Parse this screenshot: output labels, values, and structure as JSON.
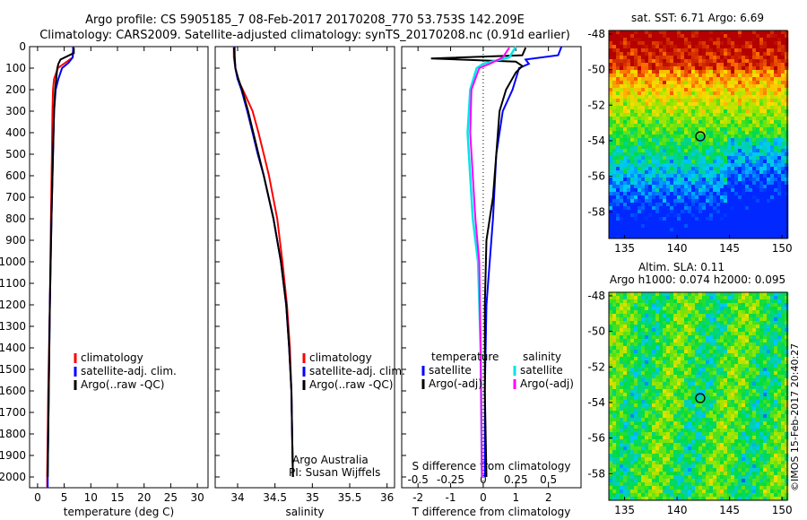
{
  "header": {
    "line1": "Argo profile: CS 5905185_7 08-Feb-2017 20170208_770 53.753S 142.209E",
    "line2": "Climatology: CARS2009. Satellite-adjusted climatology: synTS_20170208.nc (0.91d earlier)"
  },
  "colors": {
    "climatology": "#ff0000",
    "satellite": "#0000ff",
    "argo": "#000000",
    "sal_satellite": "#00e5e5",
    "sal_argo": "#ff00ff"
  },
  "chart_data": [
    {
      "type": "line",
      "panel": "temperature",
      "xlabel": "temperature (deg C)",
      "ylabel": "",
      "xlim": [
        -1.5,
        32
      ],
      "ylim": [
        2050,
        0
      ],
      "xticks": [
        0,
        5,
        10,
        15,
        20,
        25,
        30
      ],
      "yticks": [
        0,
        100,
        200,
        300,
        400,
        500,
        600,
        700,
        800,
        900,
        1000,
        1100,
        1200,
        1300,
        1400,
        1500,
        1600,
        1700,
        1800,
        1900,
        2000
      ],
      "legend": [
        "climatology",
        "satellite-adj. clim.",
        "Argo(..raw -QC)"
      ],
      "legend_position": "bottom-center",
      "series": [
        {
          "name": "climatology",
          "depth": [
            0,
            50,
            75,
            100,
            150,
            200,
            300,
            500,
            800,
            1200,
            1600,
            2000,
            2050
          ],
          "values": [
            6.7,
            6.6,
            5.2,
            3.8,
            3.1,
            2.9,
            2.8,
            2.7,
            2.5,
            2.3,
            2.0,
            1.8,
            1.8
          ]
        },
        {
          "name": "satellite-adj. clim.",
          "depth": [
            0,
            50,
            75,
            100,
            150,
            200,
            300,
            500,
            800,
            1200,
            1600,
            2000,
            2050
          ],
          "values": [
            6.7,
            6.6,
            5.8,
            4.6,
            3.9,
            3.4,
            3.1,
            2.9,
            2.6,
            2.3,
            2.1,
            1.9,
            1.9
          ]
        },
        {
          "name": "Argo(..raw -QC)",
          "depth": [
            5,
            30,
            60,
            80,
            100,
            150,
            200,
            300,
            500,
            800,
            1200,
            1600,
            2000
          ],
          "values": [
            6.8,
            6.8,
            4.3,
            3.9,
            3.7,
            3.5,
            3.3,
            3.1,
            2.9,
            2.6,
            2.3,
            2.1,
            1.9
          ]
        }
      ]
    },
    {
      "type": "line",
      "panel": "salinity",
      "xlabel": "salinity",
      "xlim": [
        33.7,
        36.1
      ],
      "ylim": [
        2050,
        0
      ],
      "xticks": [
        34,
        34.5,
        35,
        35.5,
        36
      ],
      "legend": [
        "climatology",
        "satellite-adj. clim.",
        "Argo(..raw -QC)"
      ],
      "legend_position": "bottom-right",
      "annotation": [
        "Argo Australia",
        "PI: Susan Wijffels"
      ],
      "series": [
        {
          "name": "climatology",
          "depth": [
            0,
            50,
            100,
            150,
            200,
            300,
            400,
            500,
            600,
            800,
            1000,
            1200,
            1400,
            1600,
            1800,
            2000
          ],
          "values": [
            33.95,
            33.95,
            33.97,
            34.0,
            34.07,
            34.2,
            34.28,
            34.35,
            34.42,
            34.53,
            34.6,
            34.66,
            34.7,
            34.72,
            34.73,
            34.74
          ]
        },
        {
          "name": "satellite-adj. clim.",
          "depth": [
            0,
            50,
            100,
            150,
            200,
            300,
            400,
            500,
            600,
            800,
            1000,
            1200,
            1400,
            1600,
            1800,
            2000
          ],
          "values": [
            33.96,
            33.96,
            33.97,
            34.0,
            34.05,
            34.13,
            34.2,
            34.27,
            34.35,
            34.48,
            34.58,
            34.65,
            34.69,
            34.72,
            34.73,
            34.74
          ]
        },
        {
          "name": "Argo(..raw -QC)",
          "depth": [
            5,
            50,
            100,
            150,
            200,
            300,
            400,
            500,
            600,
            800,
            1000,
            1200,
            1400,
            1600,
            1800,
            2000
          ],
          "values": [
            33.95,
            33.96,
            33.97,
            34.01,
            34.06,
            34.14,
            34.21,
            34.28,
            34.35,
            34.48,
            34.58,
            34.65,
            34.69,
            34.72,
            34.73,
            34.74
          ]
        }
      ]
    },
    {
      "type": "line",
      "panel": "difference",
      "xlabel": "T difference from climatology",
      "xlabel_top": "S difference from climatology",
      "xlim": [
        -2.5,
        3
      ],
      "ylim": [
        2050,
        0
      ],
      "xticks": [
        -2,
        -1,
        0,
        1,
        2
      ],
      "xticks_s": [
        "-0.5",
        "-0.25",
        "0",
        "0.25",
        "0.5"
      ],
      "legend_temperature": {
        "title": "temperature",
        "items": [
          "satellite",
          "Argo(-adj)"
        ]
      },
      "legend_salinity": {
        "title": "salinity",
        "items": [
          "satellite",
          "Argo(-adj)"
        ]
      },
      "series": [
        {
          "name": "T satellite",
          "depth": [
            0,
            40,
            60,
            80,
            100,
            150,
            200,
            300,
            500,
            800,
            1200,
            1600,
            2000
          ],
          "values": [
            2.4,
            2.3,
            1.3,
            1.4,
            1.1,
            1.0,
            0.9,
            0.6,
            0.4,
            0.3,
            0.1,
            0.05,
            0.05
          ]
        },
        {
          "name": "T Argo(-adj)",
          "depth": [
            5,
            40,
            55,
            70,
            90,
            120,
            200,
            300,
            500,
            700,
            900,
            1200,
            1600,
            2000
          ],
          "values": [
            1.3,
            1.2,
            -1.6,
            1.0,
            1.2,
            1.0,
            0.7,
            0.5,
            0.4,
            0.3,
            0.1,
            0.05,
            0.05,
            0.1
          ]
        },
        {
          "name": "S satellite",
          "depth": [
            0,
            50,
            80,
            100,
            200,
            400,
            600,
            800,
            1000,
            1400,
            2000
          ],
          "values": [
            0.25,
            0.2,
            0.0,
            -0.05,
            -0.1,
            -0.12,
            -0.1,
            -0.08,
            -0.04,
            -0.02,
            -0.01
          ]
        },
        {
          "name": "S Argo(-adj)",
          "depth": [
            5,
            50,
            80,
            100,
            200,
            400,
            600,
            800,
            1000,
            1400,
            2000
          ],
          "values": [
            0.2,
            0.15,
            0.05,
            -0.03,
            -0.09,
            -0.1,
            -0.08,
            -0.06,
            -0.03,
            -0.02,
            -0.01
          ]
        }
      ]
    },
    {
      "type": "heatmap",
      "panel": "sst_map",
      "title": "sat. SST: 6.71  Argo: 6.69",
      "xlim": [
        133.5,
        150.5
      ],
      "ylim": [
        -59.5,
        -47.8
      ],
      "xticks": [
        135,
        140,
        145,
        150
      ],
      "yticks": [
        -48,
        -50,
        -52,
        -54,
        -56,
        -58
      ],
      "marker": {
        "lon": 142.209,
        "lat": -53.753
      }
    },
    {
      "type": "heatmap",
      "panel": "sla_map",
      "title_line1": "Altim. SLA: 0.11",
      "title_line2": "Argo h1000: 0.074  h2000: 0.095",
      "xlim": [
        133.5,
        150.5
      ],
      "ylim": [
        -59.5,
        -47.8
      ],
      "xticks": [
        135,
        140,
        145,
        150
      ],
      "yticks": [
        -48,
        -50,
        -52,
        -54,
        -56,
        -58
      ],
      "marker": {
        "lon": 142.209,
        "lat": -53.753
      }
    }
  ],
  "watermark": "©IMOS 15-Feb-2017 20:40:27"
}
